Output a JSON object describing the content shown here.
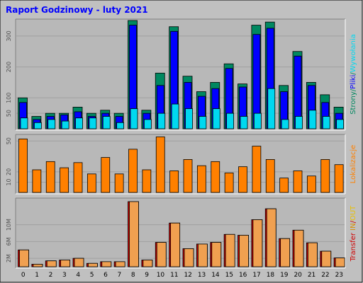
{
  "title": "Raport Godzinowy -  luty 2021",
  "colors": {
    "frame_bg": "#c0c0c0",
    "panel_bg": "#b8b8b8",
    "title": "#0000ff",
    "strony": "#008860",
    "pliki": "#0000ff",
    "wywolania": "#00d8f0",
    "lokalizacje": "#ff8000",
    "transfer": "#d00000",
    "in_out_bar": "#f0a050",
    "in_label": "#d89000",
    "out_label": "#e8c000"
  },
  "chart_data": [
    {
      "type": "bar",
      "name": "panel-hits",
      "categories": [
        "0",
        "1",
        "2",
        "3",
        "4",
        "5",
        "6",
        "7",
        "8",
        "9",
        "10",
        "11",
        "12",
        "13",
        "14",
        "15",
        "16",
        "17",
        "18",
        "19",
        "20",
        "21",
        "22",
        "23"
      ],
      "ylim": [
        0,
        350
      ],
      "yticks": [
        "50",
        "100",
        "200",
        "300"
      ],
      "ytick_values": [
        50,
        100,
        200,
        300
      ],
      "legend": {
        "parts": [
          {
            "text": "Strony",
            "color_key": "strony"
          },
          {
            "text": "/",
            "color_key": "strony"
          },
          {
            "text": "Pliki",
            "color_key": "pliki"
          },
          {
            "text": "/",
            "color_key": "strony"
          },
          {
            "text": "Wywołania",
            "color_key": "wywolania"
          }
        ]
      },
      "series": [
        {
          "name": "Strony",
          "values": [
            100,
            40,
            50,
            50,
            70,
            50,
            60,
            50,
            350,
            60,
            180,
            330,
            170,
            120,
            150,
            210,
            145,
            335,
            345,
            140,
            250,
            150,
            110,
            70
          ]
        },
        {
          "name": "Pliki",
          "values": [
            85,
            30,
            40,
            45,
            55,
            40,
            50,
            40,
            335,
            50,
            140,
            315,
            150,
            105,
            130,
            195,
            135,
            305,
            325,
            120,
            235,
            140,
            85,
            50
          ]
        },
        {
          "name": "Wywołania",
          "values": [
            35,
            20,
            30,
            25,
            35,
            35,
            40,
            20,
            65,
            30,
            50,
            80,
            65,
            40,
            65,
            50,
            40,
            50,
            130,
            30,
            40,
            60,
            40,
            30
          ]
        }
      ]
    },
    {
      "type": "bar",
      "name": "panel-visits",
      "categories": [
        "0",
        "1",
        "2",
        "3",
        "4",
        "5",
        "6",
        "7",
        "8",
        "9",
        "10",
        "11",
        "12",
        "13",
        "14",
        "15",
        "16",
        "17",
        "18",
        "19",
        "20",
        "21",
        "22",
        "23"
      ],
      "ylim": [
        0,
        55
      ],
      "yticks": [
        "10",
        "20",
        "50"
      ],
      "ytick_values": [
        10,
        20,
        50
      ],
      "legend": {
        "parts": [
          {
            "text": "Lokalizacje",
            "color_key": "lokalizacje"
          }
        ]
      },
      "series": [
        {
          "name": "Lokalizacje",
          "values": [
            52,
            22,
            30,
            24,
            29,
            18,
            34,
            18,
            42,
            22,
            54,
            21,
            32,
            26,
            30,
            19,
            25,
            45,
            32,
            14,
            21,
            16,
            32,
            27
          ]
        }
      ]
    },
    {
      "type": "bar",
      "name": "panel-transfer",
      "categories": [
        "0",
        "1",
        "2",
        "3",
        "4",
        "5",
        "6",
        "7",
        "8",
        "9",
        "10",
        "11",
        "12",
        "13",
        "14",
        "15",
        "16",
        "17",
        "18",
        "19",
        "20",
        "21",
        "22",
        "23"
      ],
      "ylim": [
        0,
        16
      ],
      "yticks": [
        "2M",
        "6M",
        "10M"
      ],
      "ytick_values": [
        2,
        6,
        10
      ],
      "legend": {
        "parts": [
          {
            "text": "Transfer",
            "color_key": "transfer"
          },
          {
            "text": " ",
            "color_key": "transfer"
          },
          {
            "text": "IN",
            "color_key": "in_label"
          },
          {
            "text": "/",
            "color_key": "transfer"
          },
          {
            "text": "OUT",
            "color_key": "out_label"
          }
        ]
      },
      "series": [
        {
          "name": "IN",
          "values": [
            4.0,
            0.6,
            1.4,
            1.6,
            2.0,
            0.8,
            1.2,
            1.2,
            15.5,
            1.6,
            5.8,
            10.4,
            4.3,
            5.4,
            5.8,
            7.7,
            7.5,
            11.2,
            13.8,
            6.7,
            8.7,
            5.7,
            3.7,
            2.1
          ]
        },
        {
          "name": "OUT",
          "values": [
            4.0,
            0.6,
            1.4,
            1.6,
            2.0,
            0.8,
            1.2,
            1.2,
            15.5,
            1.6,
            5.8,
            10.4,
            4.3,
            5.4,
            5.8,
            7.7,
            7.5,
            11.2,
            13.8,
            6.7,
            8.7,
            5.7,
            3.7,
            2.1
          ]
        }
      ]
    }
  ]
}
